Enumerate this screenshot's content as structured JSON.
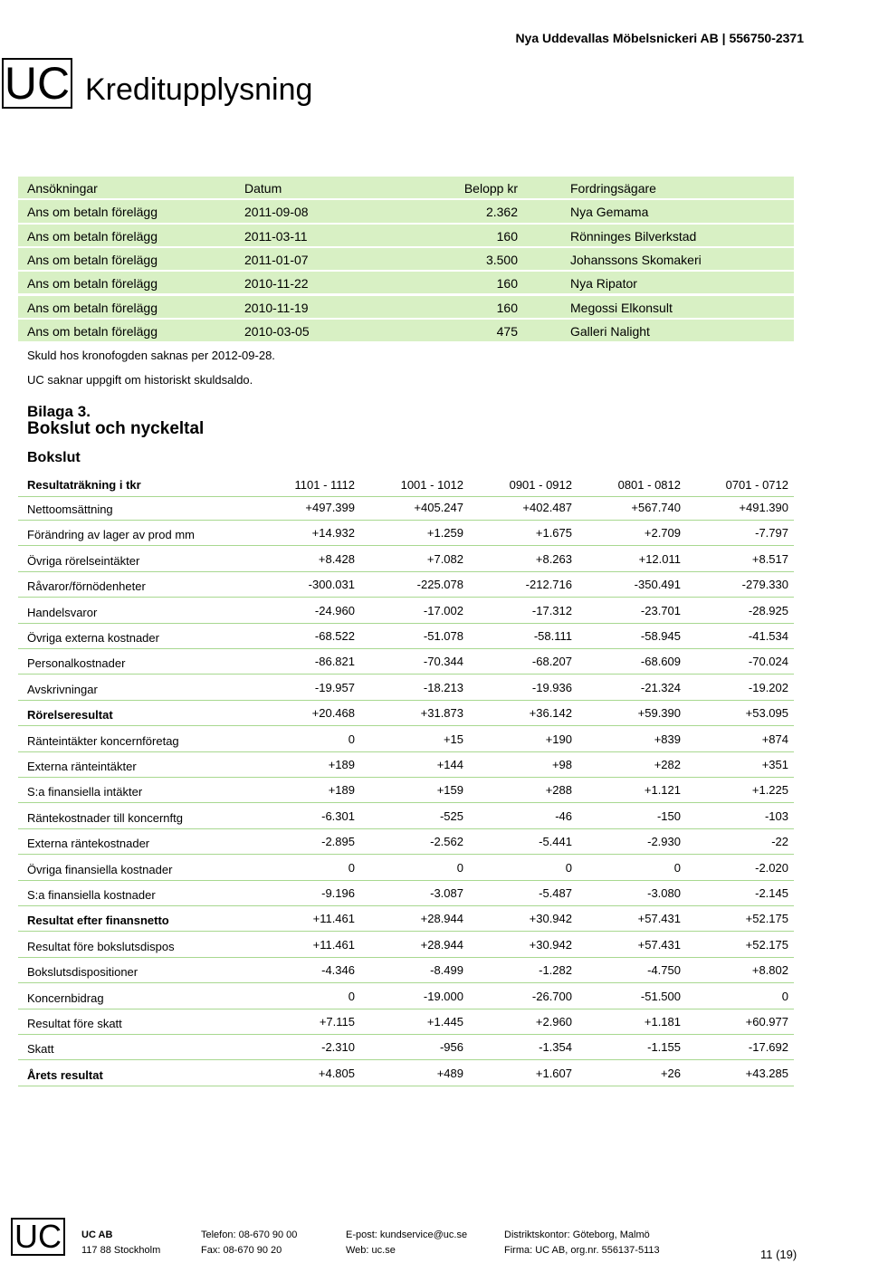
{
  "header": {
    "company": "Nya Uddevallas Möbelsnickeri AB | 556750-2371",
    "logo": "UC",
    "title": "Kreditupplysning"
  },
  "applications": {
    "columns": [
      "Ansökningar",
      "Datum",
      "Belopp kr",
      "Fordringsägare"
    ],
    "rows": [
      [
        "Ans om betaln förelägg",
        "2011-09-08",
        "2.362",
        "Nya Gemama"
      ],
      [
        "Ans om betaln förelägg",
        "2011-03-11",
        "160",
        "Rönninges Bilverkstad"
      ],
      [
        "Ans om betaln förelägg",
        "2011-01-07",
        "3.500",
        "Johanssons Skomakeri"
      ],
      [
        "Ans om betaln förelägg",
        "2010-11-22",
        "160",
        "Nya Ripator"
      ],
      [
        "Ans om betaln förelägg",
        "2010-11-19",
        "160",
        "Megossi Elkonsult"
      ],
      [
        "Ans om betaln förelägg",
        "2010-03-05",
        "475",
        "Galleri Nalight"
      ]
    ]
  },
  "notes": [
    "Skuld hos kronofogden saknas per 2012-09-28.",
    "UC saknar uppgift om historiskt skuldsaldo."
  ],
  "appendix": {
    "label": "Bilaga 3.",
    "title": "Bokslut och nyckeltal",
    "section": "Bokslut"
  },
  "income": {
    "columns": [
      "Resultaträkning i tkr",
      "1101 - 1112",
      "1001 - 1012",
      "0901 - 0912",
      "0801 - 0812",
      "0701 - 0712"
    ],
    "rows": [
      {
        "label": "Nettoomsättning",
        "values": [
          "+497.399",
          "+405.247",
          "+402.487",
          "+567.740",
          "+491.390"
        ]
      },
      {
        "label": "Förändring av lager av prod mm",
        "values": [
          "+14.932",
          "+1.259",
          "+1.675",
          "+2.709",
          "-7.797"
        ]
      },
      {
        "label": "Övriga rörelseintäkter",
        "values": [
          "+8.428",
          "+7.082",
          "+8.263",
          "+12.011",
          "+8.517"
        ]
      },
      {
        "label": "Råvaror/förnödenheter",
        "values": [
          "-300.031",
          "-225.078",
          "-212.716",
          "-350.491",
          "-279.330"
        ]
      },
      {
        "label": "Handelsvaror",
        "values": [
          "-24.960",
          "-17.002",
          "-17.312",
          "-23.701",
          "-28.925"
        ]
      },
      {
        "label": "Övriga externa kostnader",
        "values": [
          "-68.522",
          "-51.078",
          "-58.111",
          "-58.945",
          "-41.534"
        ]
      },
      {
        "label": "Personalkostnader",
        "values": [
          "-86.821",
          "-70.344",
          "-68.207",
          "-68.609",
          "-70.024"
        ]
      },
      {
        "label": "Avskrivningar",
        "values": [
          "-19.957",
          "-18.213",
          "-19.936",
          "-21.324",
          "-19.202"
        ]
      },
      {
        "label": "Rörelseresultat",
        "values": [
          "+20.468",
          "+31.873",
          "+36.142",
          "+59.390",
          "+53.095"
        ],
        "bold": true
      },
      {
        "label": "Ränteintäkter koncernföretag",
        "values": [
          "0",
          "+15",
          "+190",
          "+839",
          "+874"
        ]
      },
      {
        "label": "Externa ränteintäkter",
        "values": [
          "+189",
          "+144",
          "+98",
          "+282",
          "+351"
        ]
      },
      {
        "label": "S:a finansiella intäkter",
        "values": [
          "+189",
          "+159",
          "+288",
          "+1.121",
          "+1.225"
        ]
      },
      {
        "label": "Räntekostnader till koncernftg",
        "values": [
          "-6.301",
          "-525",
          "-46",
          "-150",
          "-103"
        ]
      },
      {
        "label": "Externa räntekostnader",
        "values": [
          "-2.895",
          "-2.562",
          "-5.441",
          "-2.930",
          "-22"
        ]
      },
      {
        "label": "Övriga finansiella kostnader",
        "values": [
          "0",
          "0",
          "0",
          "0",
          "-2.020"
        ]
      },
      {
        "label": "S:a finansiella kostnader",
        "values": [
          "-9.196",
          "-3.087",
          "-5.487",
          "-3.080",
          "-2.145"
        ]
      },
      {
        "label": "Resultat efter finansnetto",
        "values": [
          "+11.461",
          "+28.944",
          "+30.942",
          "+57.431",
          "+52.175"
        ],
        "bold": true
      },
      {
        "label": "Resultat före bokslutsdispos",
        "values": [
          "+11.461",
          "+28.944",
          "+30.942",
          "+57.431",
          "+52.175"
        ]
      },
      {
        "label": "Bokslutsdispositioner",
        "values": [
          "-4.346",
          "-8.499",
          "-1.282",
          "-4.750",
          "+8.802"
        ]
      },
      {
        "label": "Koncernbidrag",
        "values": [
          "0",
          "-19.000",
          "-26.700",
          "-51.500",
          "0"
        ]
      },
      {
        "label": "Resultat före skatt",
        "values": [
          "+7.115",
          "+1.445",
          "+2.960",
          "+1.181",
          "+60.977"
        ]
      },
      {
        "label": "Skatt",
        "values": [
          "-2.310",
          "-956",
          "-1.354",
          "-1.155",
          "-17.692"
        ]
      },
      {
        "label": "Årets resultat",
        "values": [
          "+4.805",
          "+489",
          "+1.607",
          "+26",
          "+43.285"
        ],
        "bold": true
      }
    ]
  },
  "footer": {
    "logo": "UC",
    "columns": [
      [
        "UC AB",
        "117 88 Stockholm"
      ],
      [
        "Telefon: 08-670 90 00",
        "Fax: 08-670 90 20"
      ],
      [
        "E-post: kundservice@uc.se",
        "Web: uc.se"
      ],
      [
        "Distriktskontor: Göteborg, Malmö",
        "Firma: UC AB, org.nr. 556137-5113"
      ]
    ],
    "page": "11 (19)"
  }
}
